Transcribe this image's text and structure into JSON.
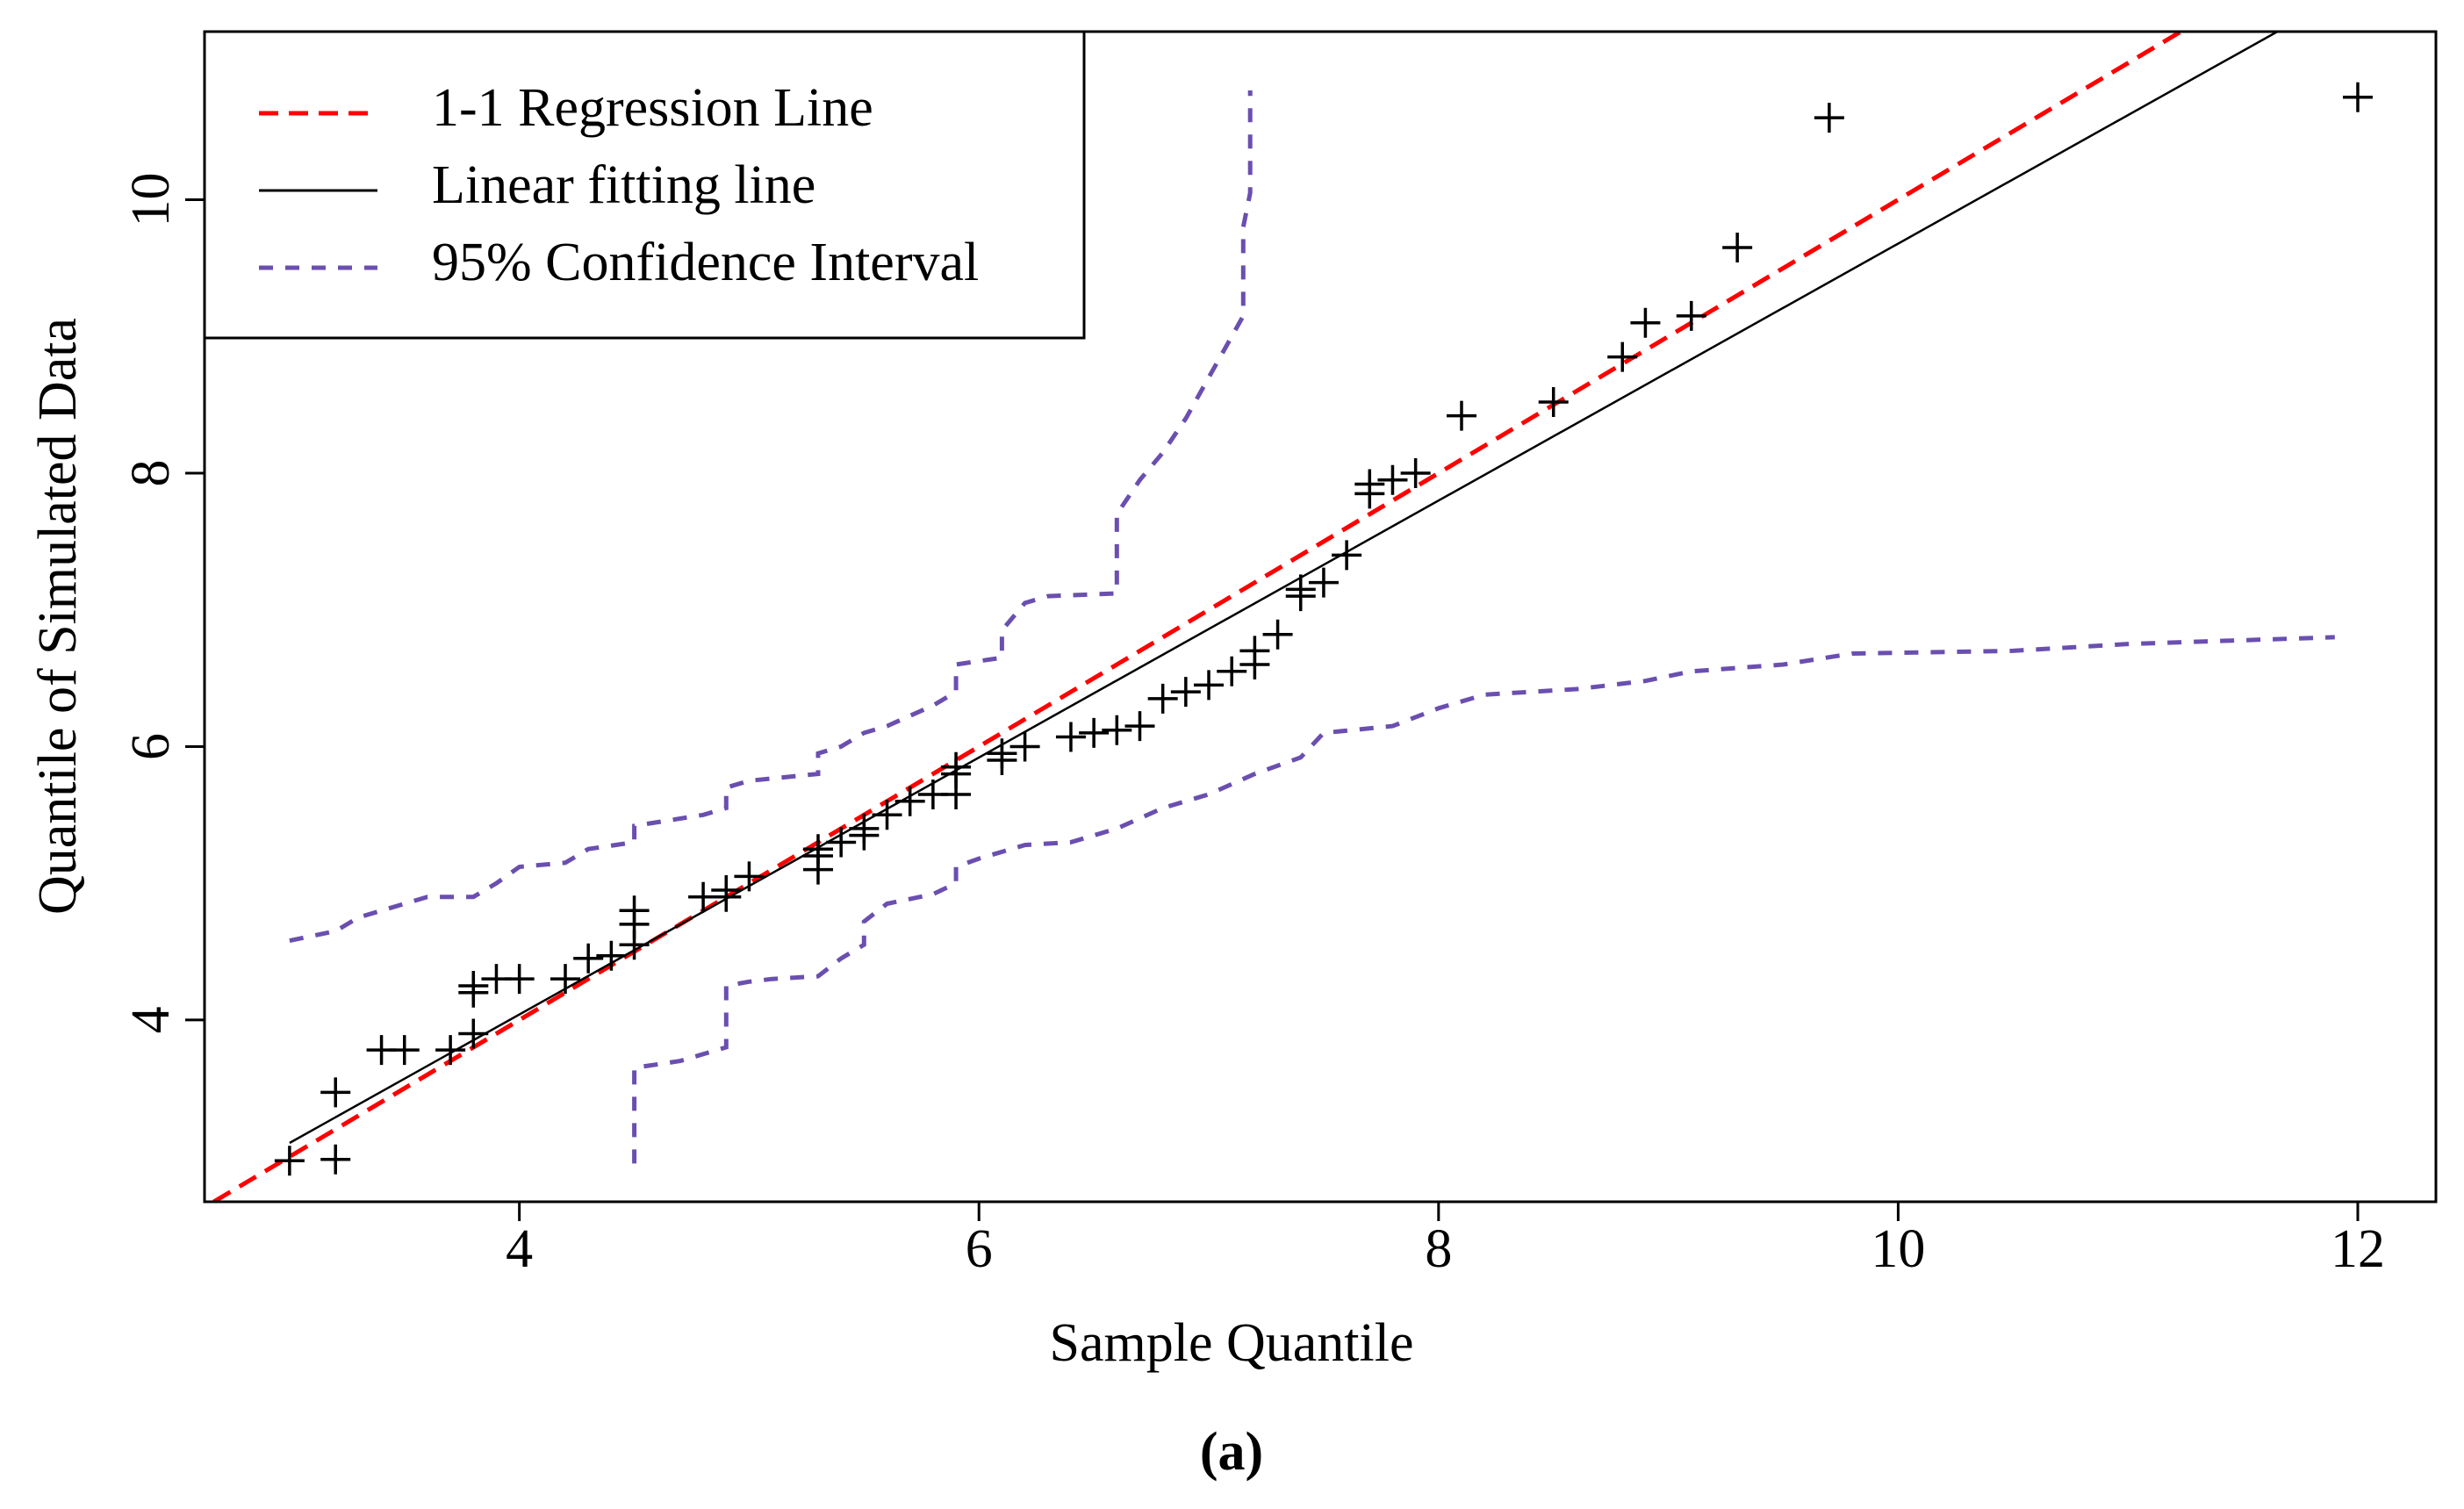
{
  "chart_data": {
    "type": "scatter",
    "xlabel": "Sample Quantile",
    "ylabel": "Quantile of Simulated Data",
    "caption": "(a)",
    "xlim": [
      2.63,
      12.34
    ],
    "ylim": [
      2.67,
      11.23
    ],
    "xticks": [
      4,
      6,
      8,
      10,
      12
    ],
    "yticks": [
      4,
      6,
      8,
      10
    ],
    "legend": "upper left",
    "series": [
      {
        "name": "1-1 Regression Line",
        "type": "line",
        "style": "dashed",
        "color": "#ff0000",
        "x": [
          2.67,
          11.23
        ],
        "values": [
          2.67,
          11.23
        ]
      },
      {
        "name": "Linear fitting line",
        "type": "line",
        "style": "solid",
        "color": "#000000",
        "x": [
          3.0,
          11.65
        ],
        "values": [
          3.1,
          11.23
        ]
      },
      {
        "name": "95% Confidence Interval",
        "type": "line",
        "style": "dotted",
        "color": "#6a4fb0",
        "x": [
          3.0,
          3.2,
          3.3,
          3.5,
          3.6,
          3.8,
          3.9,
          4.0,
          4.2,
          4.3,
          4.5,
          4.5,
          4.8,
          4.9,
          4.9,
          5.0,
          5.3,
          5.3,
          5.4,
          5.5,
          5.6,
          5.8,
          5.9,
          5.9,
          6.1,
          6.1,
          6.2,
          6.3,
          6.6,
          6.6,
          6.6,
          6.7,
          6.8,
          6.9,
          7.0,
          7.1,
          7.15,
          7.15,
          7.18,
          7.18,
          null,
          4.5,
          4.5,
          4.7,
          4.9,
          4.9,
          5.0,
          5.1,
          5.3,
          5.4,
          5.5,
          5.5,
          5.6,
          5.8,
          5.9,
          5.9,
          6.0,
          6.2,
          6.4,
          6.6,
          6.8,
          7.0,
          7.2,
          7.4,
          7.5,
          7.8,
          8.0,
          8.2,
          8.6,
          8.9,
          9.1,
          9.5,
          9.8,
          10.5,
          11.0,
          11.9
        ],
        "values": [
          4.58,
          4.65,
          4.75,
          4.85,
          4.9,
          4.9,
          5.0,
          5.12,
          5.15,
          5.25,
          5.3,
          5.42,
          5.5,
          5.55,
          5.7,
          5.75,
          5.8,
          5.95,
          6.0,
          6.1,
          6.15,
          6.3,
          6.4,
          6.6,
          6.65,
          6.85,
          7.05,
          7.1,
          7.12,
          7.25,
          7.7,
          7.95,
          8.15,
          8.4,
          8.7,
          9.0,
          9.15,
          9.8,
          10.05,
          10.8,
          null,
          2.95,
          3.65,
          3.7,
          3.8,
          4.25,
          4.28,
          4.3,
          4.32,
          4.45,
          4.55,
          4.72,
          4.85,
          4.92,
          5.0,
          5.12,
          5.18,
          5.28,
          5.3,
          5.4,
          5.55,
          5.65,
          5.8,
          5.92,
          6.1,
          6.15,
          6.28,
          6.38,
          6.42,
          6.48,
          6.55,
          6.6,
          6.68,
          6.7,
          6.75,
          6.8
        ]
      },
      {
        "type": "scatter",
        "marker": "+",
        "color": "#000000",
        "x": [
          3.0,
          3.2,
          3.2,
          3.4,
          3.5,
          3.7,
          3.8,
          3.8,
          3.8,
          3.9,
          4.0,
          4.2,
          4.3,
          4.4,
          4.5,
          4.5,
          4.5,
          4.8,
          4.9,
          4.9,
          5.0,
          5.3,
          5.3,
          5.3,
          5.4,
          5.5,
          5.5,
          5.6,
          5.7,
          5.8,
          5.9,
          5.9,
          5.9,
          6.1,
          6.1,
          6.2,
          6.4,
          6.5,
          6.6,
          6.7,
          6.8,
          6.9,
          7.0,
          7.1,
          7.2,
          7.2,
          7.3,
          7.4,
          7.4,
          7.5,
          7.6,
          7.7,
          7.7,
          7.8,
          7.9,
          8.1,
          8.5,
          8.8,
          8.9,
          9.1,
          9.3,
          9.7,
          12.0
        ],
        "values": [
          2.97,
          3.47,
          2.98,
          3.78,
          3.78,
          3.78,
          3.9,
          4.2,
          4.25,
          4.3,
          4.3,
          4.3,
          4.45,
          4.47,
          4.55,
          4.7,
          4.8,
          4.9,
          4.9,
          4.95,
          5.05,
          5.1,
          5.2,
          5.25,
          5.3,
          5.35,
          5.4,
          5.5,
          5.6,
          5.65,
          5.65,
          5.8,
          5.85,
          5.9,
          5.95,
          6.0,
          6.07,
          6.1,
          6.12,
          6.15,
          6.35,
          6.4,
          6.45,
          6.55,
          6.6,
          6.7,
          6.82,
          7.1,
          7.15,
          7.2,
          7.4,
          7.85,
          7.92,
          7.95,
          8.0,
          8.42,
          8.52,
          8.85,
          9.1,
          9.15,
          9.65,
          10.6,
          10.75
        ]
      }
    ]
  }
}
